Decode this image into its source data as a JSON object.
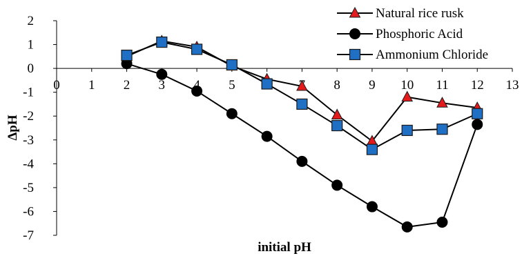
{
  "chart_data": {
    "type": "line",
    "title": "",
    "xlabel": "initial pH",
    "ylabel": "ΔpH",
    "xlim": [
      0,
      13
    ],
    "ylim": [
      -7,
      2
    ],
    "xticks": [
      0,
      1,
      2,
      3,
      4,
      5,
      6,
      7,
      8,
      9,
      10,
      11,
      12,
      13
    ],
    "yticks": [
      2,
      1,
      0,
      -1,
      -2,
      -3,
      -4,
      -5,
      -6,
      -7
    ],
    "grid": false,
    "legend_position": "top-right",
    "x": [
      2,
      3,
      4,
      5,
      6,
      7,
      8,
      9,
      10,
      11,
      12
    ],
    "series": [
      {
        "name": "Natural rice rusk",
        "marker": "triangle",
        "color": "#e31a1c",
        "values": [
          0.5,
          1.15,
          0.9,
          0.1,
          -0.45,
          -0.75,
          -1.95,
          -3.05,
          -1.2,
          -1.45,
          -1.65
        ]
      },
      {
        "name": "Phosphoric Acid",
        "marker": "circle",
        "color": "#000000",
        "values": [
          0.2,
          -0.25,
          -0.95,
          -1.9,
          -2.85,
          -3.9,
          -4.9,
          -5.8,
          -6.65,
          -6.45,
          -2.35
        ]
      },
      {
        "name": "Ammonium Chloride",
        "marker": "square",
        "color": "#1f6fc5",
        "values": [
          0.55,
          1.1,
          0.8,
          0.15,
          -0.65,
          -1.5,
          -2.4,
          -3.4,
          -2.6,
          -2.55,
          -1.9
        ]
      }
    ]
  }
}
